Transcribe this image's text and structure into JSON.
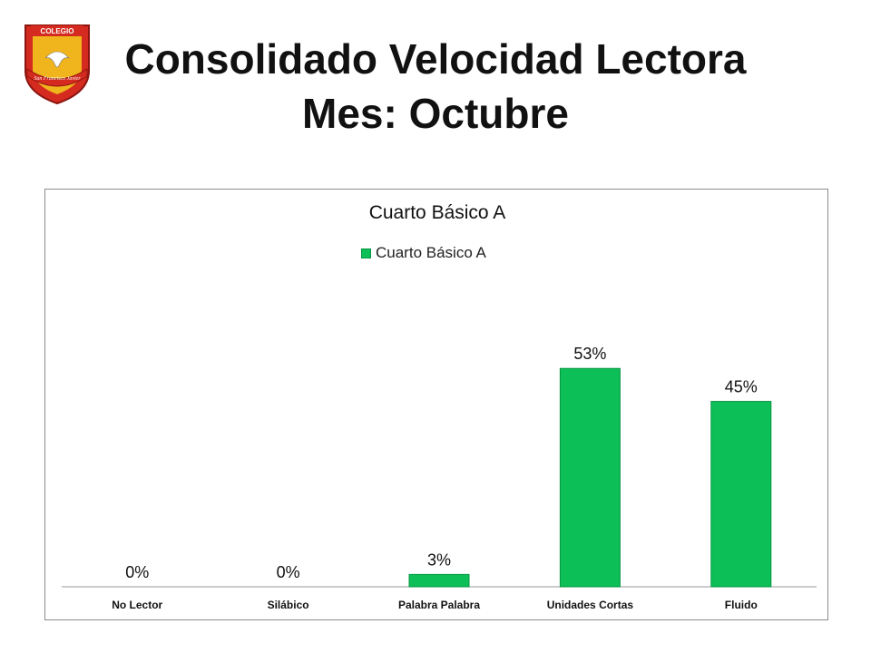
{
  "header": {
    "logo_text_top": "COLEGIO",
    "logo_text_ribbon": "San Francisco Javier",
    "title_line1": "Consolidado Velocidad Lectora",
    "title_line2": "Mes: Octubre"
  },
  "colors": {
    "bar": "#0cbf56",
    "bar_edge": "#079643",
    "logo_red": "#d42a1f",
    "logo_gold": "#f0b51c"
  },
  "chart_data": {
    "type": "bar",
    "title": "Cuarto Básico A",
    "legend_position": "top",
    "categories": [
      "No Lector",
      "Silábico",
      "Palabra Palabra",
      "Unidades Cortas",
      "Fluido"
    ],
    "series": [
      {
        "name": "Cuarto Básico A",
        "values": [
          0,
          0,
          3,
          53,
          45
        ]
      }
    ],
    "data_labels": [
      "0%",
      "0%",
      "3%",
      "53%",
      "45%"
    ],
    "ylim": [
      0,
      70
    ],
    "grid": false
  }
}
